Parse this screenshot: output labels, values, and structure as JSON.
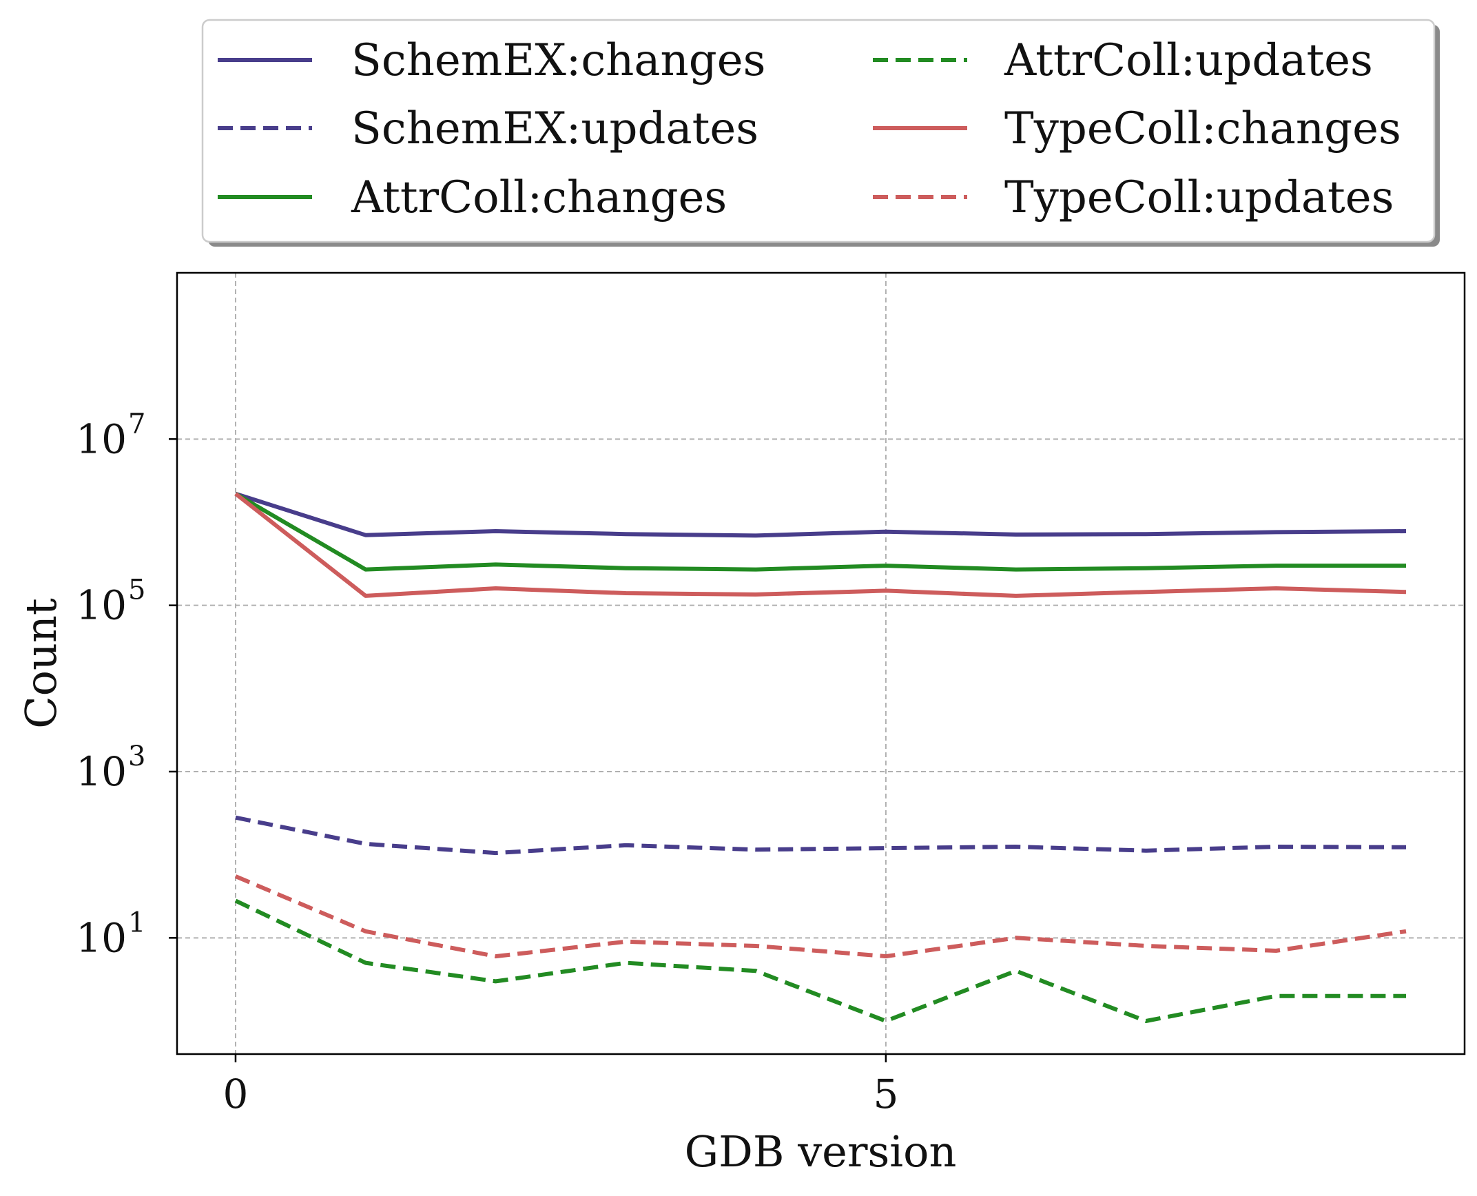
{
  "chart_data": {
    "type": "line",
    "title": "",
    "xlabel": "GDB version",
    "ylabel": "Count",
    "yscale": "log",
    "xlim": [
      -0.45,
      9.45
    ],
    "ylim": [
      0.4,
      1000000000
    ],
    "x": [
      0,
      1,
      2,
      3,
      4,
      5,
      6,
      7,
      8,
      9
    ],
    "xticks": [
      {
        "value": 0,
        "label": "0"
      },
      {
        "value": 5,
        "label": "5"
      }
    ],
    "yticks": [
      {
        "value": 10,
        "base": "10",
        "exp": "1"
      },
      {
        "value": 1000,
        "base": "10",
        "exp": "3"
      },
      {
        "value": 100000,
        "base": "10",
        "exp": "5"
      },
      {
        "value": 10000000,
        "base": "10",
        "exp": "7"
      }
    ],
    "grid": true,
    "legend_placement": "above plot, two columns",
    "series": [
      {
        "name": "SchemEX:changes",
        "color": "#483D8B",
        "style": "solid",
        "values": [
          2200000,
          700000,
          780000,
          720000,
          690000,
          770000,
          710000,
          720000,
          760000,
          780000
        ]
      },
      {
        "name": "SchemEX:updates",
        "color": "#483D8B",
        "style": "dashed",
        "values": [
          280,
          135,
          105,
          130,
          115,
          120,
          125,
          112,
          125,
          123
        ]
      },
      {
        "name": "AttrColl:changes",
        "color": "#228B22",
        "style": "solid",
        "values": [
          2200000,
          270000,
          310000,
          280000,
          270000,
          300000,
          270000,
          280000,
          300000,
          300000
        ]
      },
      {
        "name": "AttrColl:updates",
        "color": "#228B22",
        "style": "dashed",
        "values": [
          28,
          5,
          3,
          5,
          4,
          1,
          4,
          1,
          2,
          2
        ]
      },
      {
        "name": "TypeColl:changes",
        "color": "#CD5C5C",
        "style": "solid",
        "values": [
          2200000,
          130000,
          160000,
          140000,
          135000,
          150000,
          130000,
          145000,
          160000,
          145000
        ]
      },
      {
        "name": "TypeColl:updates",
        "color": "#CD5C5C",
        "style": "dashed",
        "values": [
          55,
          12,
          6,
          9,
          8,
          6,
          10,
          8,
          7,
          12
        ]
      }
    ]
  }
}
